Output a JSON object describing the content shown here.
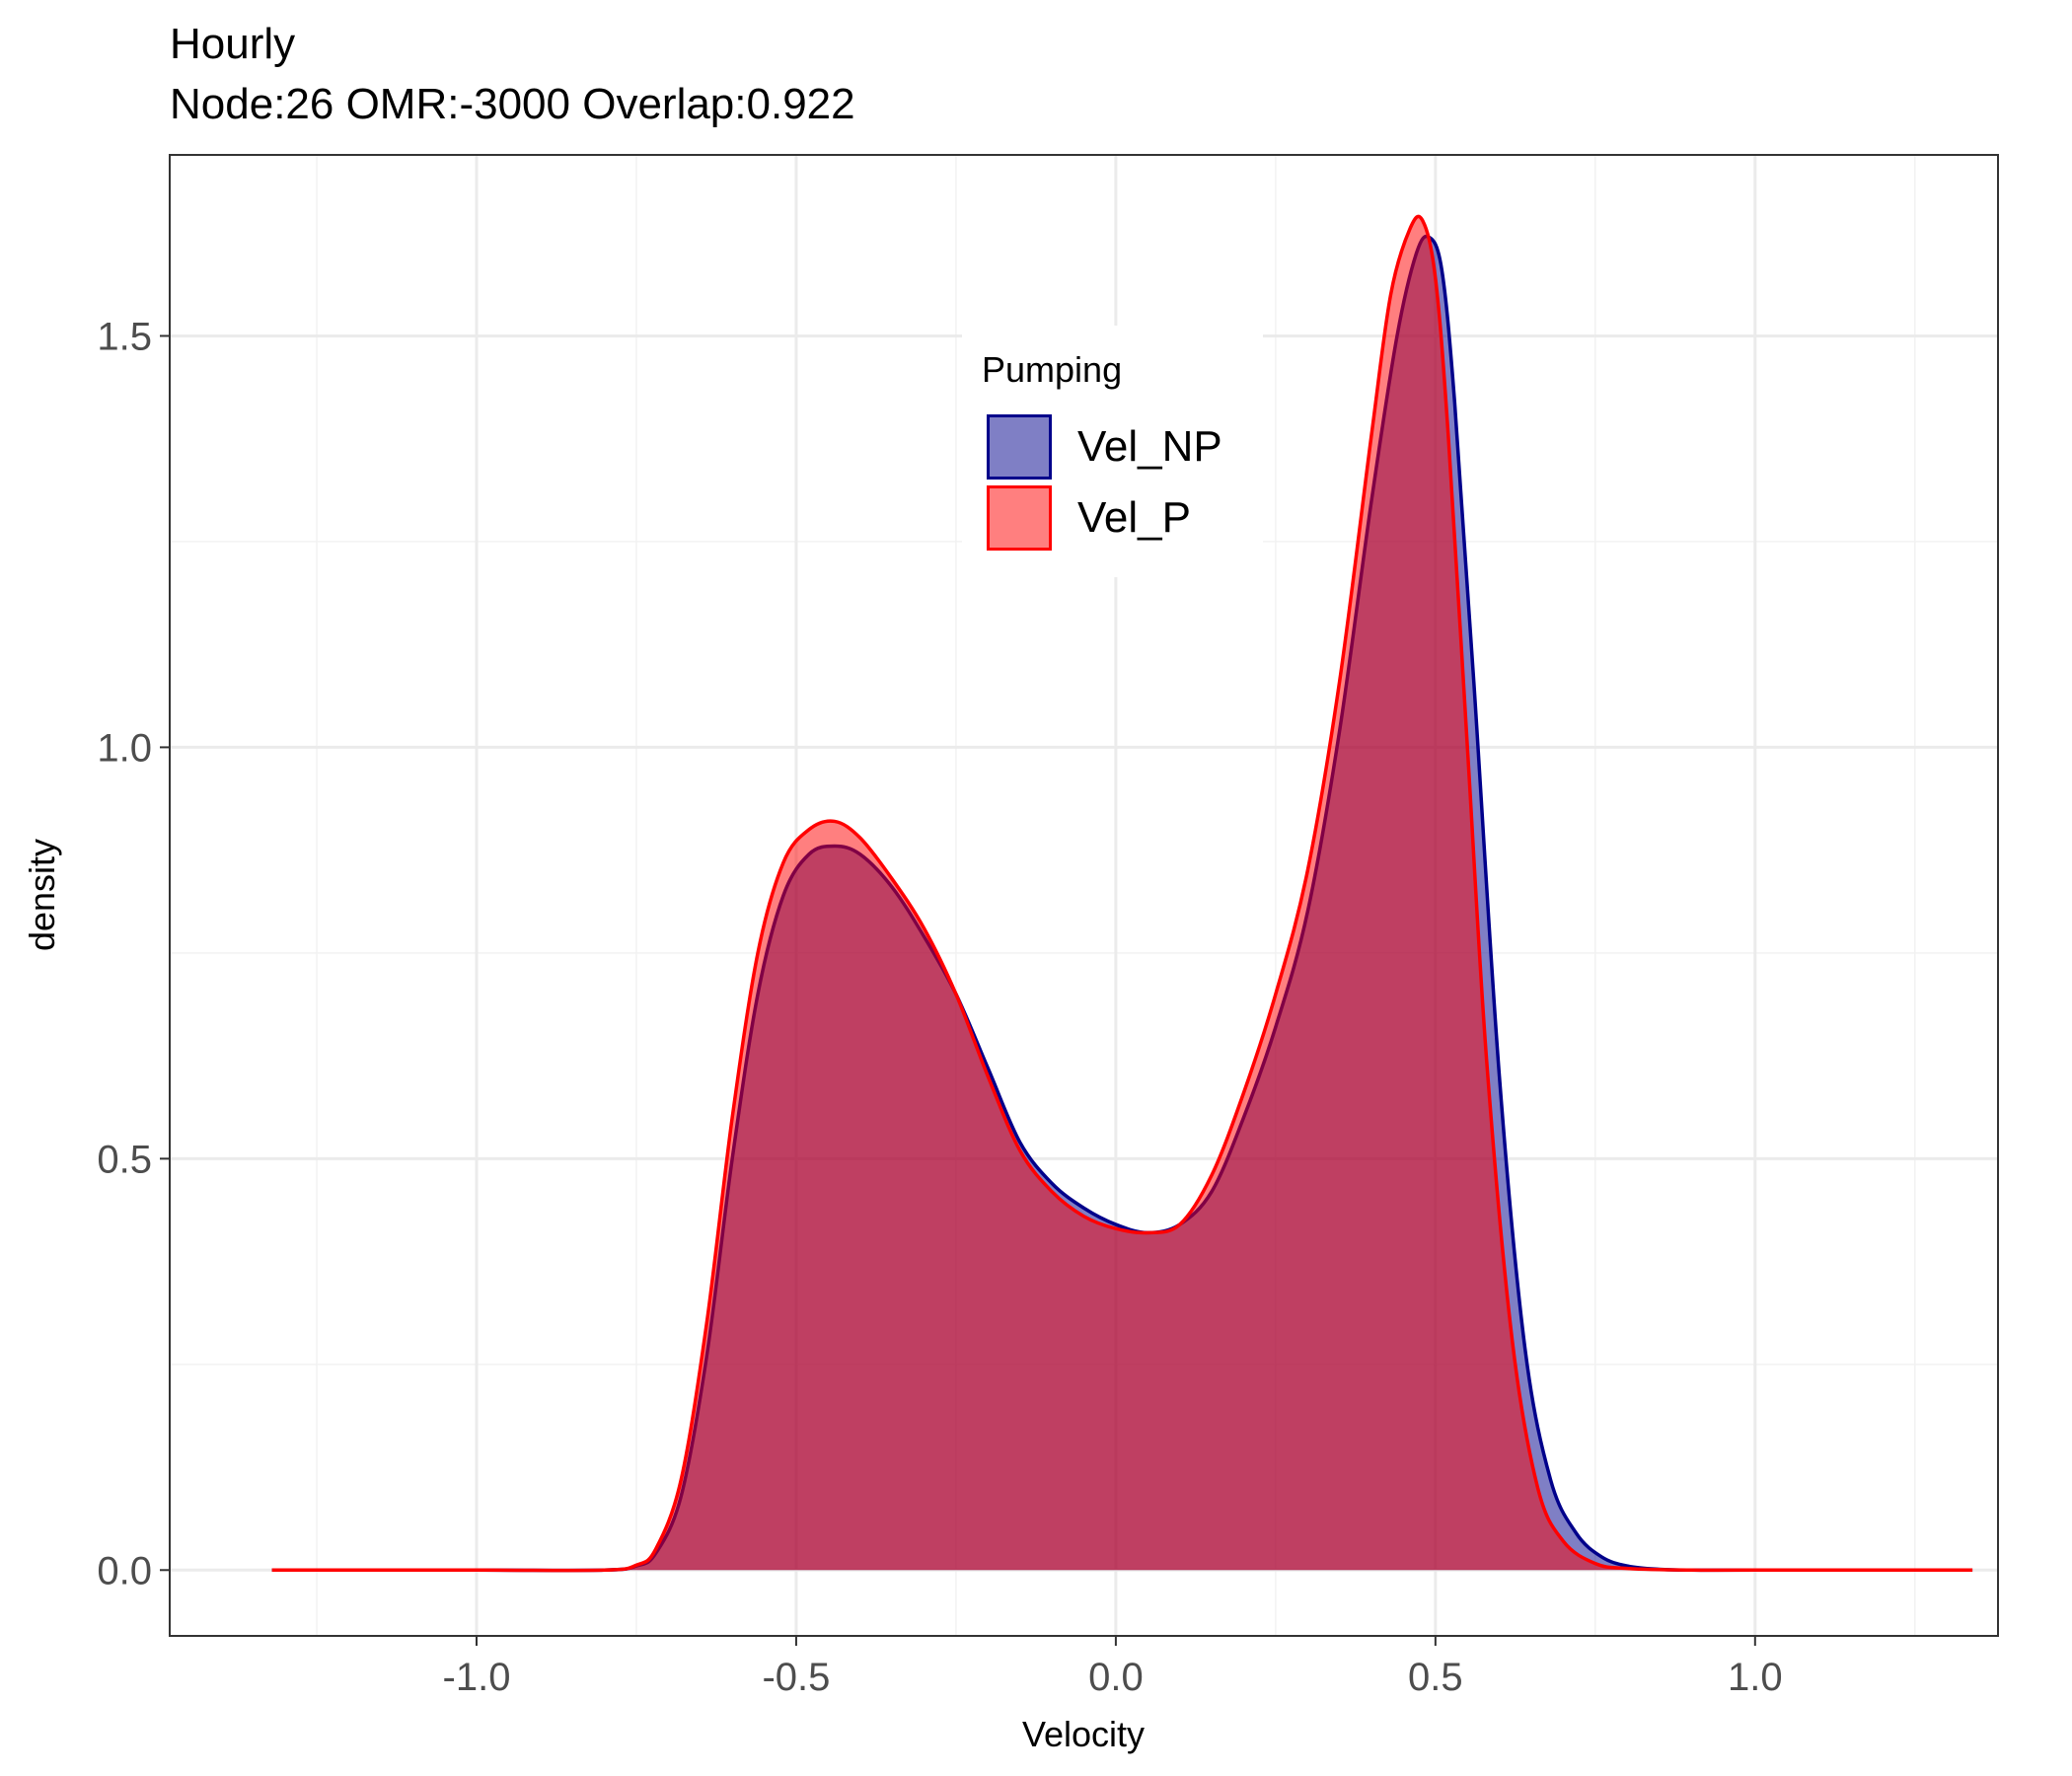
{
  "chart_data": {
    "type": "area",
    "title": "Hourly",
    "subtitle": "Node:26 OMR:-3000  Overlap:0.922",
    "xlabel": "Velocity",
    "ylabel": "density",
    "xlim": [
      -1.48,
      1.38
    ],
    "ylim": [
      -0.08,
      1.72
    ],
    "x_ticks": [
      -1.0,
      -0.5,
      0.0,
      0.5,
      1.0
    ],
    "x_tick_labels": [
      "-1.0",
      "-0.5",
      "0.0",
      "0.5",
      "1.0"
    ],
    "y_ticks": [
      0.0,
      0.5,
      1.0,
      1.5
    ],
    "y_tick_labels": [
      "0.0",
      "0.5",
      "1.0",
      "1.5"
    ],
    "grid": true,
    "legend": {
      "title": "Pumping",
      "position": "inside-top-center"
    },
    "series": [
      {
        "name": "Vel_NP",
        "stroke": "#00008b",
        "fill": "#00008b",
        "fill_opacity": 0.5,
        "x": [
          -1.32,
          -1.0,
          -0.8,
          -0.75,
          -0.72,
          -0.68,
          -0.64,
          -0.6,
          -0.56,
          -0.52,
          -0.48,
          -0.44,
          -0.4,
          -0.35,
          -0.3,
          -0.25,
          -0.2,
          -0.15,
          -0.1,
          -0.05,
          0.0,
          0.05,
          0.1,
          0.15,
          0.2,
          0.25,
          0.3,
          0.35,
          0.4,
          0.44,
          0.47,
          0.49,
          0.51,
          0.53,
          0.56,
          0.6,
          0.64,
          0.68,
          0.72,
          0.76,
          0.8,
          0.85,
          0.9,
          1.0,
          1.34
        ],
        "y": [
          0.0,
          0.0,
          0.0,
          0.005,
          0.02,
          0.09,
          0.26,
          0.5,
          0.7,
          0.82,
          0.87,
          0.88,
          0.87,
          0.83,
          0.77,
          0.7,
          0.61,
          0.52,
          0.47,
          0.44,
          0.42,
          0.41,
          0.42,
          0.46,
          0.55,
          0.66,
          0.8,
          1.02,
          1.3,
          1.5,
          1.6,
          1.62,
          1.58,
          1.42,
          1.08,
          0.6,
          0.27,
          0.11,
          0.045,
          0.016,
          0.005,
          0.001,
          0.0,
          0.0,
          0.0
        ]
      },
      {
        "name": "Vel_P",
        "stroke": "#ff0000",
        "fill": "#ff0000",
        "fill_opacity": 0.5,
        "x": [
          -1.32,
          -1.0,
          -0.8,
          -0.75,
          -0.72,
          -0.68,
          -0.64,
          -0.6,
          -0.56,
          -0.52,
          -0.48,
          -0.44,
          -0.4,
          -0.35,
          -0.3,
          -0.25,
          -0.2,
          -0.15,
          -0.1,
          -0.05,
          0.0,
          0.05,
          0.1,
          0.15,
          0.2,
          0.25,
          0.3,
          0.35,
          0.4,
          0.43,
          0.46,
          0.48,
          0.5,
          0.52,
          0.55,
          0.58,
          0.62,
          0.66,
          0.7,
          0.75,
          0.8,
          0.9,
          1.0,
          1.34
        ],
        "y": [
          0.0,
          0.0,
          0.0,
          0.006,
          0.025,
          0.11,
          0.3,
          0.55,
          0.75,
          0.86,
          0.9,
          0.91,
          0.89,
          0.84,
          0.78,
          0.7,
          0.6,
          0.51,
          0.46,
          0.43,
          0.415,
          0.41,
          0.42,
          0.48,
          0.58,
          0.7,
          0.85,
          1.08,
          1.38,
          1.55,
          1.63,
          1.64,
          1.57,
          1.38,
          1.0,
          0.62,
          0.28,
          0.1,
          0.035,
          0.008,
          0.002,
          0.0,
          0.0,
          0.0
        ]
      }
    ]
  }
}
